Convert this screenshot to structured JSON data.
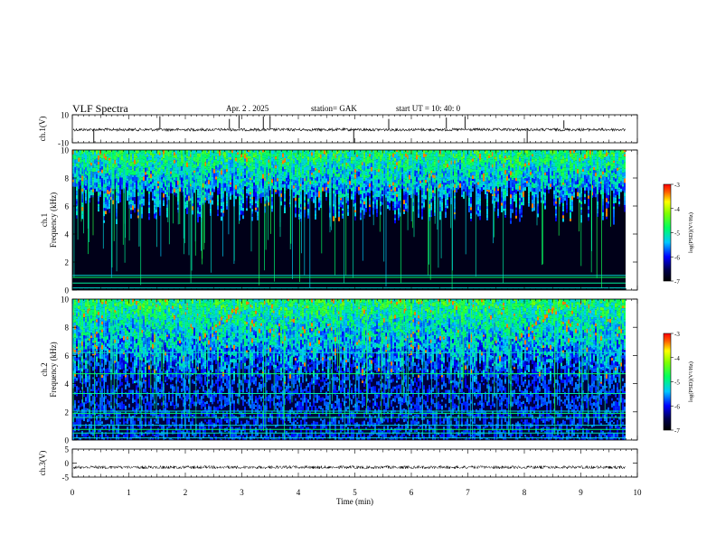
{
  "header": {
    "title": "VLF  Spectra",
    "date": "Apr. 2   . 2025",
    "station": "station= GAK",
    "start_ut": "start  UT  =    10: 40: 0"
  },
  "chart_data": [
    {
      "type": "line",
      "panel": "ch1-waveform",
      "ylabel": "ch.1(V)",
      "ylim": [
        -10,
        10
      ],
      "yticks": [
        10,
        -10
      ],
      "xlim": [
        0,
        10
      ],
      "baseline": 0,
      "spikes": [
        {
          "x": 0.38,
          "y": -10
        },
        {
          "x": 1.55,
          "y": 9
        },
        {
          "x": 2.78,
          "y": 7
        },
        {
          "x": 2.95,
          "y": 9.5
        },
        {
          "x": 3.38,
          "y": 9
        },
        {
          "x": 3.5,
          "y": 9
        },
        {
          "x": 4.98,
          "y": -10
        },
        {
          "x": 5.6,
          "y": 7
        },
        {
          "x": 6.62,
          "y": 8
        },
        {
          "x": 6.95,
          "y": 9
        },
        {
          "x": 8.05,
          "y": -10
        },
        {
          "x": 8.7,
          "y": 6
        }
      ]
    },
    {
      "type": "heatmap",
      "panel": "ch1-spectrogram",
      "ylabel": "ch.1\nFrequency  (kHz)",
      "ylim": [
        0,
        10
      ],
      "yticks": [
        0,
        2,
        4,
        6,
        8,
        10
      ],
      "xlim": [
        0,
        10
      ],
      "colorbar": {
        "label": "log(PSD)(V²/Hz)",
        "range": [
          -7,
          -3
        ],
        "ticks": [
          -3,
          -4,
          -5,
          -6,
          -7
        ]
      },
      "noise_floor_khz": 6.2,
      "lines_khz": [
        0.15,
        0.5,
        0.9,
        1.05
      ]
    },
    {
      "type": "heatmap",
      "panel": "ch2-spectrogram",
      "ylabel": "ch.2\nFrequency  (kHz)",
      "ylim": [
        0,
        10
      ],
      "yticks": [
        0,
        2,
        4,
        6,
        8,
        10
      ],
      "xlim": [
        0,
        10
      ],
      "colorbar": {
        "label": "log(PSD)(V²/Hz)",
        "range": [
          -7,
          -3
        ],
        "ticks": [
          -3,
          -4,
          -5,
          -6,
          -7
        ]
      },
      "noise_floor_khz": 5.2,
      "lines_khz": [
        0.15,
        0.5,
        0.75,
        1.05,
        1.6,
        1.9,
        2.05,
        3.3,
        4.7,
        6.2
      ]
    },
    {
      "type": "line",
      "panel": "ch3-waveform",
      "ylabel": "ch.3(V)",
      "ylim": [
        -5,
        5
      ],
      "yticks": [
        5,
        0,
        -5
      ],
      "xlim": [
        0,
        10
      ],
      "baseline": -1.5
    }
  ],
  "xaxis": {
    "label": "Time  (min)",
    "ticks": [
      0,
      1,
      2,
      3,
      4,
      5,
      6,
      7,
      8,
      9,
      10
    ]
  }
}
